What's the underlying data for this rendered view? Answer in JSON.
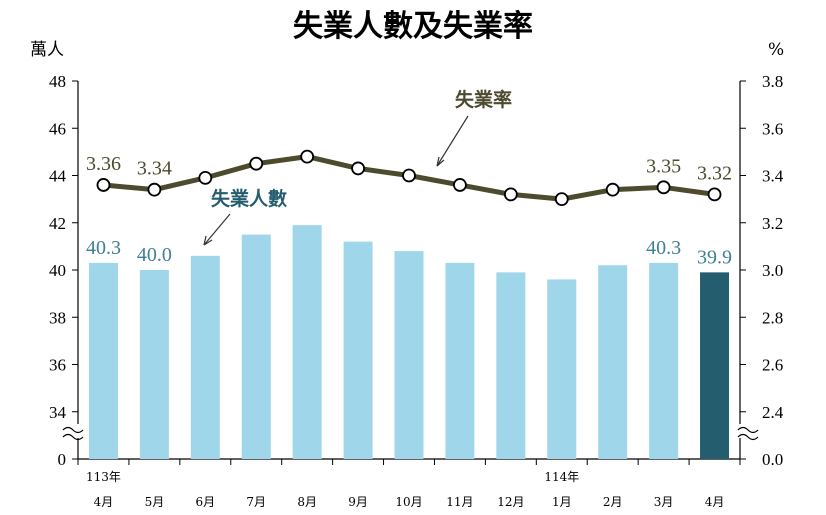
{
  "chart_data": {
    "type": "bar+line",
    "title": "失業人數及失業率",
    "left_unit": "萬人",
    "right_unit": "%",
    "left_axis": {
      "min": 32,
      "max": 48,
      "ticks": [
        "0",
        "34",
        "36",
        "38",
        "40",
        "42",
        "44",
        "46",
        "48"
      ],
      "break": true
    },
    "right_axis": {
      "min": 2.2,
      "max": 3.8,
      "ticks": [
        "0.0",
        "2.4",
        "2.6",
        "2.8",
        "3.0",
        "3.2",
        "3.4",
        "3.6",
        "3.8"
      ],
      "break": true
    },
    "months": [
      "4月",
      "5月",
      "6月",
      "7月",
      "8月",
      "9月",
      "10月",
      "11月",
      "12月",
      "1月",
      "2月",
      "3月",
      "4月"
    ],
    "year_labels": [
      {
        "index": 0,
        "text": "113年"
      },
      {
        "index": 9,
        "text": "114年"
      }
    ],
    "series": [
      {
        "name": "失業人數",
        "type": "bar",
        "axis": "left",
        "color": "#9fd6ea",
        "highlight_color": "#245d6e",
        "highlight_index": 12,
        "values": [
          40.3,
          40.0,
          40.6,
          41.5,
          41.9,
          41.2,
          40.8,
          40.3,
          39.9,
          39.6,
          40.2,
          40.3,
          39.9
        ],
        "data_labels": [
          {
            "index": 0,
            "text": "40.3"
          },
          {
            "index": 1,
            "text": "40.0"
          },
          {
            "index": 11,
            "text": "40.3"
          },
          {
            "index": 12,
            "text": "39.9"
          }
        ]
      },
      {
        "name": "失業率",
        "type": "line",
        "axis": "right",
        "color": "#4d4a2e",
        "values": [
          3.36,
          3.34,
          3.39,
          3.45,
          3.48,
          3.43,
          3.4,
          3.36,
          3.32,
          3.3,
          3.34,
          3.35,
          3.32
        ],
        "data_labels": [
          {
            "index": 0,
            "text": "3.36"
          },
          {
            "index": 1,
            "text": "3.34"
          },
          {
            "index": 11,
            "text": "3.35"
          },
          {
            "index": 12,
            "text": "3.32"
          }
        ]
      }
    ],
    "annotations": {
      "bar_label": "失業人數",
      "line_label": "失業率"
    },
    "colors": {
      "bar_label_text": "#3f7f99",
      "line_label_text": "#4d4a2e",
      "bar_annot": "#245d6e"
    }
  }
}
